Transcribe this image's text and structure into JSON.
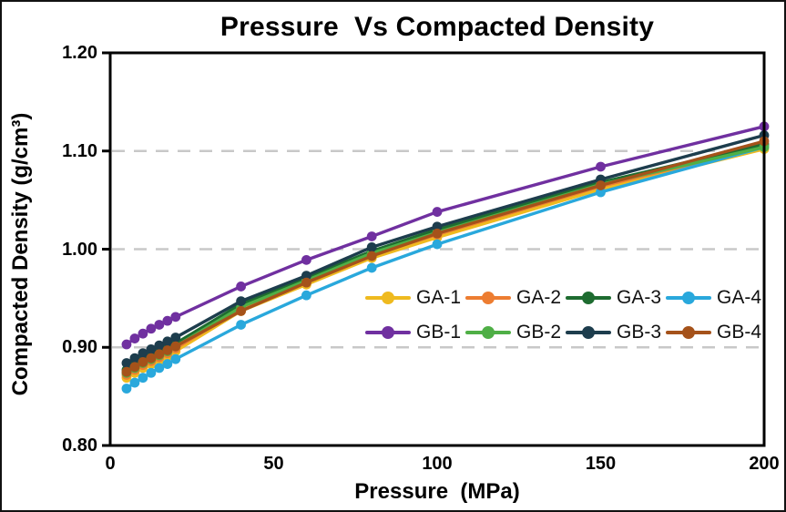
{
  "chart_data": {
    "type": "line",
    "title": "Pressure  Vs Compacted Density",
    "xlabel": "Pressure  (MPa)",
    "ylabel": "Compacted Density (g/cm³)",
    "xlim": [
      0,
      200
    ],
    "ylim": [
      0.8,
      1.2
    ],
    "x_tick_values": [
      0,
      50,
      100,
      150,
      200
    ],
    "x_tick_labels": [
      "0",
      "50",
      "100",
      "150",
      "200"
    ],
    "y_tick_values": [
      0.8,
      0.9,
      1.0,
      1.1,
      1.2
    ],
    "y_tick_labels": [
      "0.80",
      "0.90",
      "1.00",
      "1.10",
      "1.20"
    ],
    "grid": "horizontal dashed gridlines at 0.90, 1.00, 1.10",
    "gridline_color": "#c8c8c8",
    "axis_color": "#000000",
    "legend_position": "inside plot, center-right, 2 rows x 4 columns",
    "x": [
      5,
      7.5,
      10,
      12.5,
      15,
      17.5,
      20,
      40,
      60,
      80,
      100,
      150,
      200
    ],
    "series": [
      {
        "name": "GA-1",
        "color": "#EFBA1F",
        "values": [
          0.869,
          0.874,
          0.879,
          0.883,
          0.887,
          0.891,
          0.896,
          0.937,
          0.964,
          0.991,
          1.012,
          1.061,
          1.102
        ]
      },
      {
        "name": "GA-2",
        "color": "#ED7D31",
        "values": [
          0.872,
          0.877,
          0.882,
          0.886,
          0.89,
          0.894,
          0.899,
          0.939,
          0.966,
          0.994,
          1.015,
          1.064,
          1.105
        ]
      },
      {
        "name": "GA-3",
        "color": "#1E6C30",
        "values": [
          0.877,
          0.882,
          0.887,
          0.891,
          0.895,
          0.899,
          0.904,
          0.944,
          0.971,
          0.998,
          1.02,
          1.068,
          1.107
        ]
      },
      {
        "name": "GA-4",
        "color": "#29A8DC",
        "values": [
          0.858,
          0.864,
          0.869,
          0.874,
          0.879,
          0.883,
          0.888,
          0.923,
          0.953,
          0.981,
          1.005,
          1.058,
          1.104
        ]
      },
      {
        "name": "GB-1",
        "color": "#7030A0",
        "values": [
          0.903,
          0.909,
          0.914,
          0.919,
          0.923,
          0.927,
          0.931,
          0.962,
          0.989,
          1.013,
          1.038,
          1.084,
          1.125
        ]
      },
      {
        "name": "GB-2",
        "color": "#4FAF46",
        "values": [
          0.874,
          0.879,
          0.884,
          0.888,
          0.892,
          0.896,
          0.901,
          0.941,
          0.968,
          0.996,
          1.017,
          1.066,
          1.104
        ]
      },
      {
        "name": "GB-3",
        "color": "#1D3D4D",
        "values": [
          0.884,
          0.889,
          0.894,
          0.898,
          0.902,
          0.906,
          0.91,
          0.947,
          0.973,
          1.002,
          1.023,
          1.071,
          1.116
        ]
      },
      {
        "name": "GB-4",
        "color": "#A5521A",
        "values": [
          0.875,
          0.88,
          0.885,
          0.889,
          0.893,
          0.897,
          0.901,
          0.937,
          0.966,
          0.993,
          1.016,
          1.065,
          1.11
        ]
      }
    ],
    "style": {
      "line_width": 3.4,
      "marker": "circle",
      "marker_radius": 5.4
    }
  }
}
